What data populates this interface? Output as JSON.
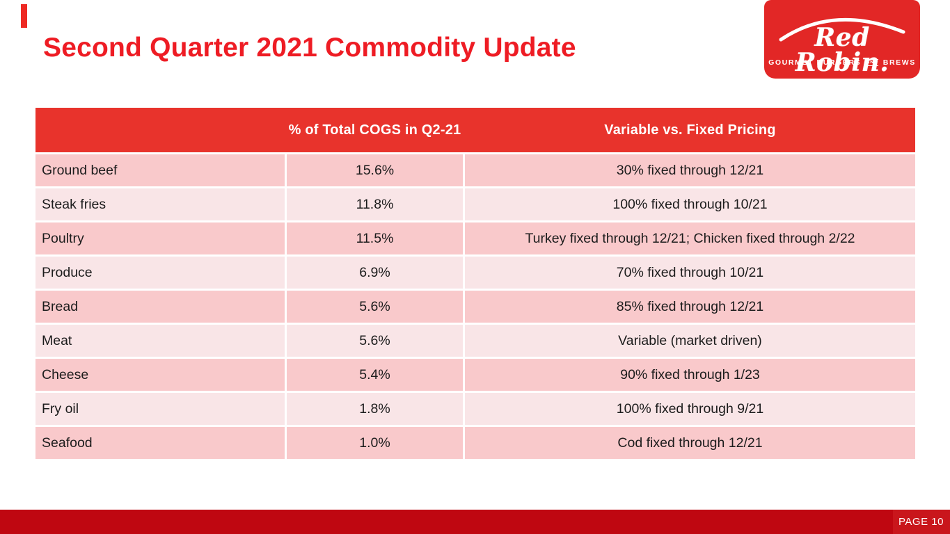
{
  "slide": {
    "title": "Second Quarter 2021 Commodity Update",
    "page_label": "PAGE 10"
  },
  "logo": {
    "brand": "Red Robin.",
    "tagline_left": "GOURMET BURGERS",
    "tagline_and": "AND",
    "tagline_right": "BREWS"
  },
  "colors": {
    "title_red": "#ee1c24",
    "header_red": "#e8332c",
    "logo_red": "#e22726",
    "footer_red": "#bf0711",
    "row_dark_pink": "#f9c9cb",
    "row_light_pink": "#f9e5e7"
  },
  "table": {
    "headers": [
      "",
      "% of Total COGS in Q2-21",
      "Variable vs. Fixed Pricing"
    ],
    "rows": [
      {
        "commodity": "Ground beef",
        "pct": "15.6%",
        "pricing": "30% fixed through 12/21"
      },
      {
        "commodity": "Steak fries",
        "pct": "11.8%",
        "pricing": "100% fixed through 10/21"
      },
      {
        "commodity": "Poultry",
        "pct": "11.5%",
        "pricing": "Turkey fixed through 12/21; Chicken fixed through 2/22"
      },
      {
        "commodity": "Produce",
        "pct": "6.9%",
        "pricing": "70% fixed through 10/21"
      },
      {
        "commodity": "Bread",
        "pct": "5.6%",
        "pricing": "85% fixed through 12/21"
      },
      {
        "commodity": "Meat",
        "pct": "5.6%",
        "pricing": "Variable (market driven)"
      },
      {
        "commodity": "Cheese",
        "pct": "5.4%",
        "pricing": "90% fixed through 1/23"
      },
      {
        "commodity": "Fry oil",
        "pct": "1.8%",
        "pricing": "100% fixed through 9/21"
      },
      {
        "commodity": "Seafood",
        "pct": "1.0%",
        "pricing": "Cod fixed through 12/21"
      }
    ]
  }
}
